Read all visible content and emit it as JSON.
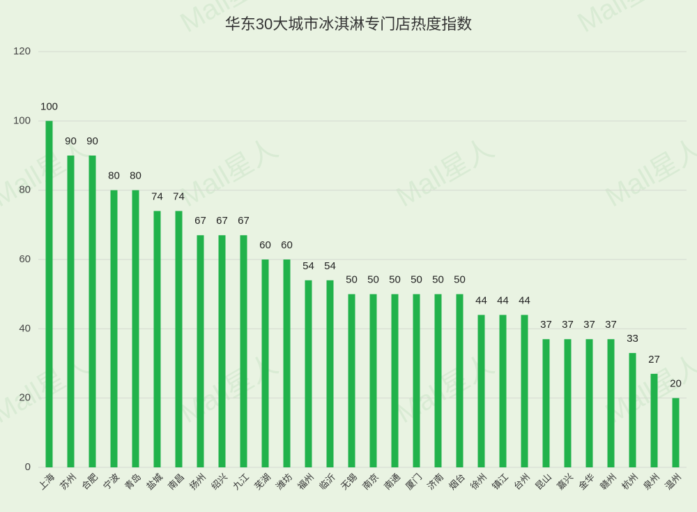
{
  "chart_data": {
    "type": "bar",
    "title": "华东30大城市冰淇淋专门店热度指数",
    "watermark": "Mall星人",
    "categories": [
      "上海",
      "苏州",
      "合肥",
      "宁波",
      "青岛",
      "盐城",
      "南昌",
      "扬州",
      "绍兴",
      "九江",
      "芜湖",
      "潍坊",
      "福州",
      "临沂",
      "无锡",
      "南京",
      "南通",
      "厦门",
      "济南",
      "烟台",
      "徐州",
      "镇江",
      "台州",
      "昆山",
      "嘉兴",
      "金华",
      "赣州",
      "杭州",
      "泉州",
      "温州"
    ],
    "values": [
      100,
      90,
      90,
      80,
      80,
      74,
      74,
      67,
      67,
      67,
      60,
      60,
      54,
      54,
      50,
      50,
      50,
      50,
      50,
      50,
      44,
      44,
      44,
      37,
      37,
      37,
      37,
      33,
      27,
      20
    ],
    "color": "#21b24b",
    "ylim": [
      0,
      120
    ],
    "yticks": [
      0,
      20,
      40,
      60,
      80,
      100,
      120
    ],
    "grid": true
  }
}
